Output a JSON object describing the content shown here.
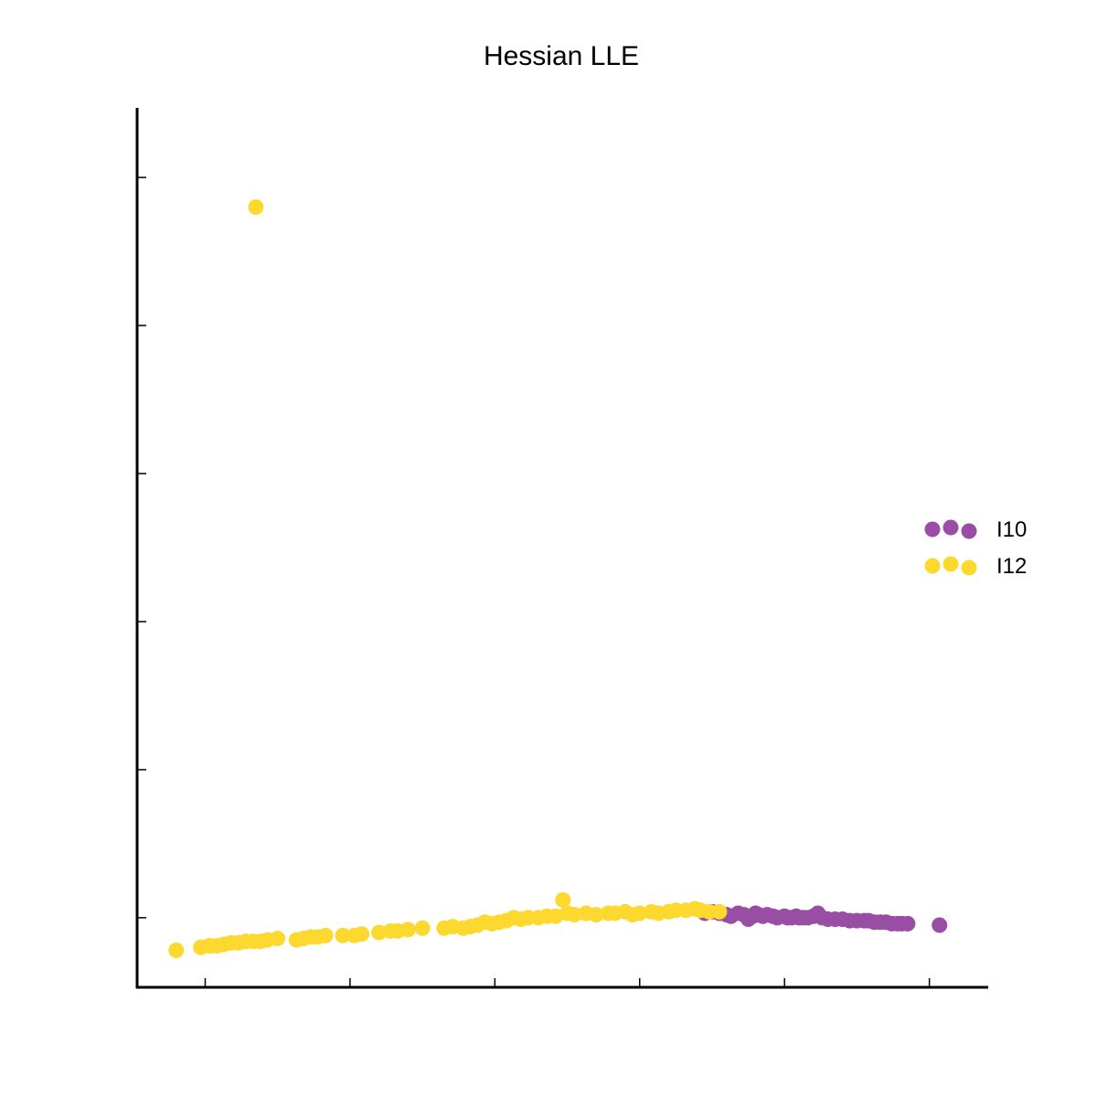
{
  "chart_data": {
    "type": "scatter",
    "title": "Hessian LLE",
    "xlabel": "",
    "ylabel": "",
    "xlim": [
      -0.47,
      5.4
    ],
    "ylim": [
      -0.47,
      5.47
    ],
    "x_ticks": [
      0,
      1,
      2,
      3,
      4,
      5
    ],
    "y_ticks": [
      0,
      1,
      2,
      3,
      4,
      5
    ],
    "tick_labels_shown": false,
    "grid": false,
    "legend_position": "center-right",
    "series": [
      {
        "name": "I10",
        "color": "#984ea3",
        "points": [
          [
            3.45,
            0.03
          ],
          [
            3.5,
            0.04
          ],
          [
            3.55,
            0.03
          ],
          [
            3.6,
            0.02
          ],
          [
            3.63,
            0.01
          ],
          [
            3.68,
            0.03
          ],
          [
            3.72,
            0.02
          ],
          [
            3.75,
            -0.01
          ],
          [
            3.78,
            0.01
          ],
          [
            3.8,
            0.03
          ],
          [
            3.82,
            0.02
          ],
          [
            3.85,
            0.01
          ],
          [
            3.88,
            0.02
          ],
          [
            3.92,
            0.01
          ],
          [
            3.95,
            0.0
          ],
          [
            4.0,
            0.01
          ],
          [
            4.02,
            0.0
          ],
          [
            4.05,
            0.0
          ],
          [
            4.08,
            0.01
          ],
          [
            4.1,
            0.0
          ],
          [
            4.13,
            0.0
          ],
          [
            4.16,
            0.0
          ],
          [
            4.2,
            0.01
          ],
          [
            4.23,
            0.03
          ],
          [
            4.26,
            0.0
          ],
          [
            4.3,
            -0.01
          ],
          [
            4.35,
            -0.01
          ],
          [
            4.4,
            -0.01
          ],
          [
            4.45,
            -0.02
          ],
          [
            4.5,
            -0.02
          ],
          [
            4.55,
            -0.02
          ],
          [
            4.58,
            -0.02
          ],
          [
            4.62,
            -0.03
          ],
          [
            4.66,
            -0.03
          ],
          [
            4.7,
            -0.03
          ],
          [
            4.74,
            -0.04
          ],
          [
            4.78,
            -0.04
          ],
          [
            4.81,
            -0.04
          ],
          [
            4.85,
            -0.04
          ],
          [
            5.07,
            -0.05
          ]
        ]
      },
      {
        "name": "I12",
        "color": "#fdd82f",
        "points": [
          [
            -0.2,
            -0.22
          ],
          [
            -0.03,
            -0.2
          ],
          [
            0.03,
            -0.19
          ],
          [
            0.08,
            -0.19
          ],
          [
            0.13,
            -0.18
          ],
          [
            0.18,
            -0.17
          ],
          [
            0.23,
            -0.17
          ],
          [
            0.28,
            -0.16
          ],
          [
            0.33,
            -0.16
          ],
          [
            0.38,
            -0.16
          ],
          [
            0.43,
            -0.15
          ],
          [
            0.5,
            -0.14
          ],
          [
            0.63,
            -0.15
          ],
          [
            0.68,
            -0.14
          ],
          [
            0.73,
            -0.13
          ],
          [
            0.78,
            -0.13
          ],
          [
            0.83,
            -0.12
          ],
          [
            0.95,
            -0.12
          ],
          [
            1.03,
            -0.12
          ],
          [
            1.08,
            -0.11
          ],
          [
            1.2,
            -0.1
          ],
          [
            1.28,
            -0.09
          ],
          [
            1.33,
            -0.09
          ],
          [
            1.4,
            -0.08
          ],
          [
            1.5,
            -0.07
          ],
          [
            1.65,
            -0.07
          ],
          [
            1.71,
            -0.06
          ],
          [
            1.78,
            -0.07
          ],
          [
            1.83,
            -0.06
          ],
          [
            1.88,
            -0.05
          ],
          [
            1.93,
            -0.03
          ],
          [
            1.98,
            -0.04
          ],
          [
            2.03,
            -0.03
          ],
          [
            2.08,
            -0.02
          ],
          [
            2.13,
            0.0
          ],
          [
            2.18,
            -0.01
          ],
          [
            2.23,
            0.0
          ],
          [
            2.3,
            0.0
          ],
          [
            2.36,
            0.01
          ],
          [
            2.42,
            0.01
          ],
          [
            2.47,
            0.12
          ],
          [
            2.5,
            0.03
          ],
          [
            2.55,
            0.02
          ],
          [
            2.63,
            0.03
          ],
          [
            2.7,
            0.02
          ],
          [
            2.78,
            0.03
          ],
          [
            2.83,
            0.03
          ],
          [
            2.9,
            0.04
          ],
          [
            2.95,
            0.02
          ],
          [
            3.0,
            0.03
          ],
          [
            3.08,
            0.04
          ],
          [
            3.13,
            0.03
          ],
          [
            3.2,
            0.04
          ],
          [
            3.25,
            0.05
          ],
          [
            3.32,
            0.05
          ],
          [
            3.38,
            0.06
          ],
          [
            3.42,
            0.05
          ],
          [
            3.48,
            0.04
          ],
          [
            3.55,
            0.04
          ],
          [
            0.35,
            4.8
          ]
        ]
      }
    ]
  }
}
